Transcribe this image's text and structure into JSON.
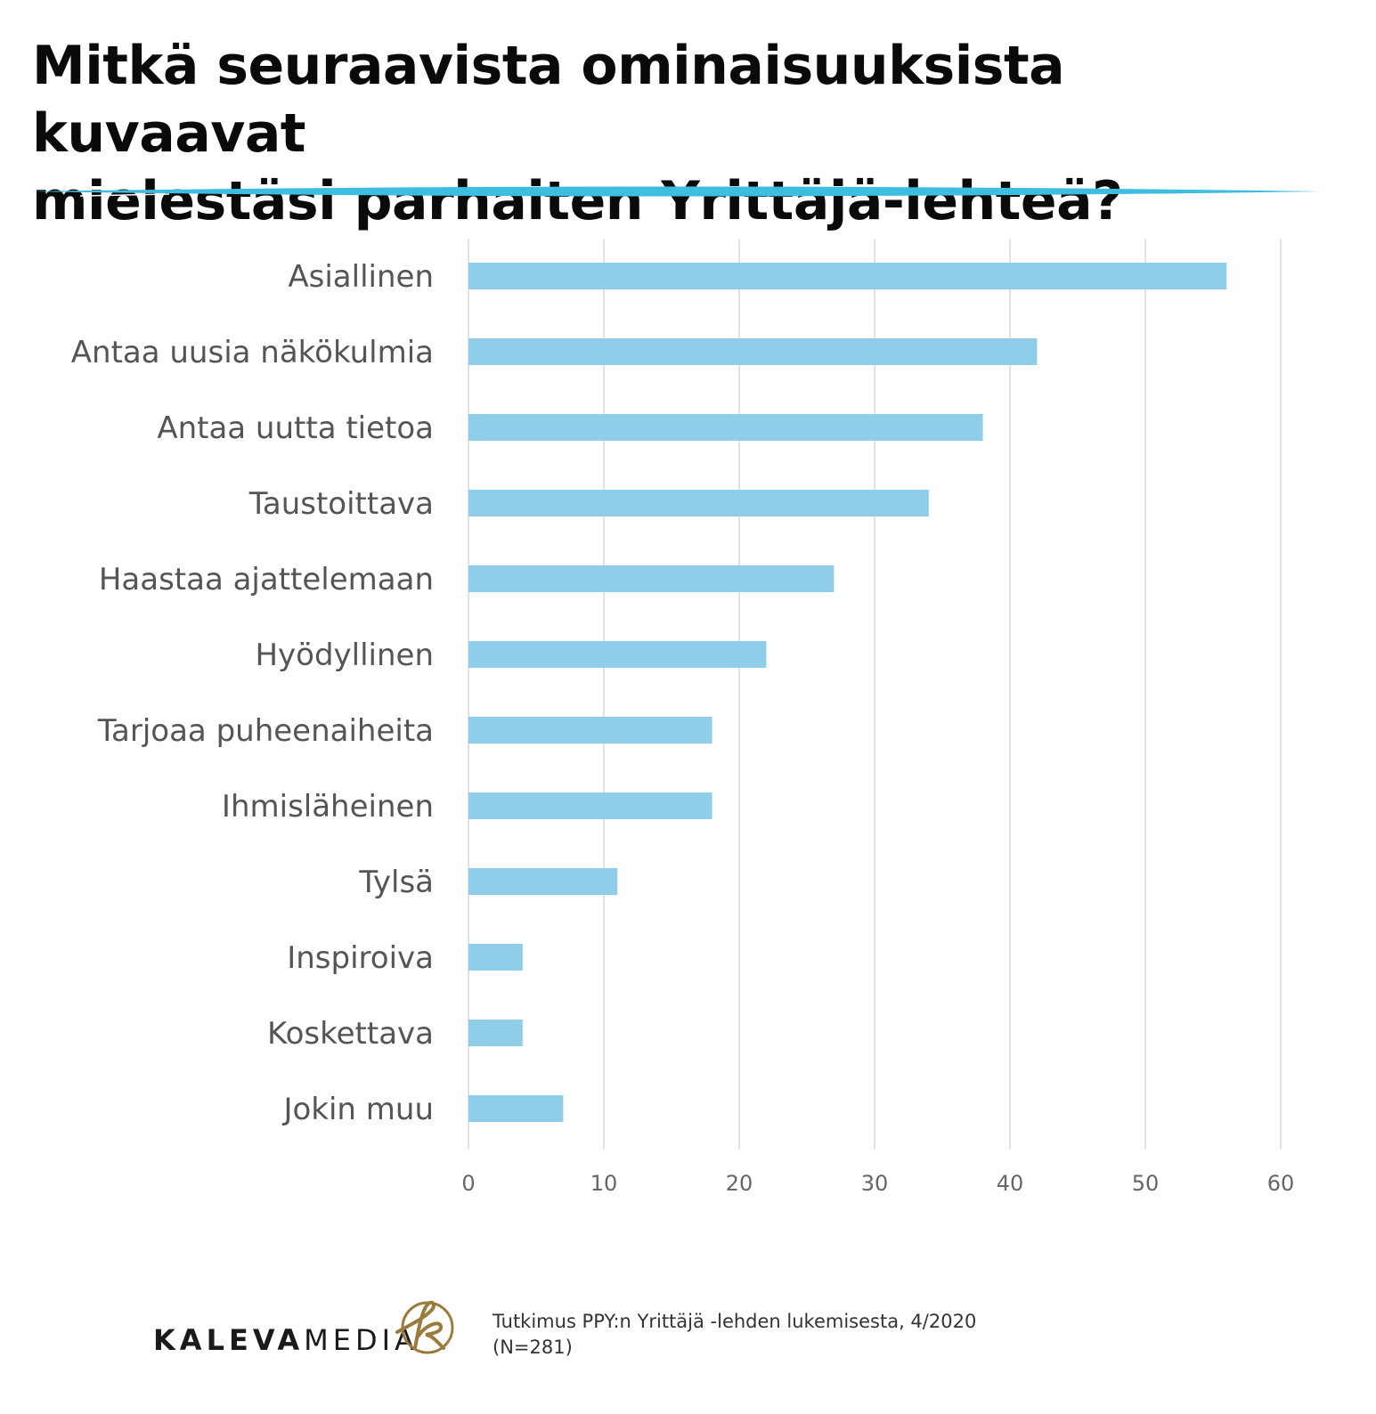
{
  "title": {
    "line1": "Mitkä seuraavista ominaisuuksista kuvaavat",
    "line2": "mielestäsi parhaiten Yrittäjä-lehteä?"
  },
  "colors": {
    "bar": "#8fcde8",
    "accent_line": "#3dbde0",
    "grid": "#d9d9d9",
    "logo_gold": "#9b7b3c"
  },
  "chart_data": {
    "type": "bar",
    "orientation": "horizontal",
    "categories": [
      "Asiallinen",
      "Antaa uusia näkökulmia",
      "Antaa uutta tietoa",
      "Taustoittava",
      "Haastaa ajattelemaan",
      "Hyödyllinen",
      "Tarjoaa puheenaiheita",
      "Ihmisläheinen",
      "Tylsä",
      "Inspiroiva",
      "Koskettava",
      "Jokin muu"
    ],
    "values": [
      56,
      42,
      38,
      34,
      27,
      22,
      18,
      18,
      11,
      4,
      4,
      7
    ],
    "xlim": [
      0,
      60
    ],
    "xticks": [
      "0",
      "10",
      "20",
      "30",
      "40",
      "50",
      "60"
    ],
    "grid": true,
    "legend": "none"
  },
  "footer": {
    "logo_bold": "KALEVA",
    "logo_light": "MEDIA",
    "logo_emblem_icon": "k-script-icon",
    "source_line1": "Tutkimus PPY:n Yrittäjä -lehden lukemisesta, 4/2020",
    "source_line2": "(N=281)"
  }
}
